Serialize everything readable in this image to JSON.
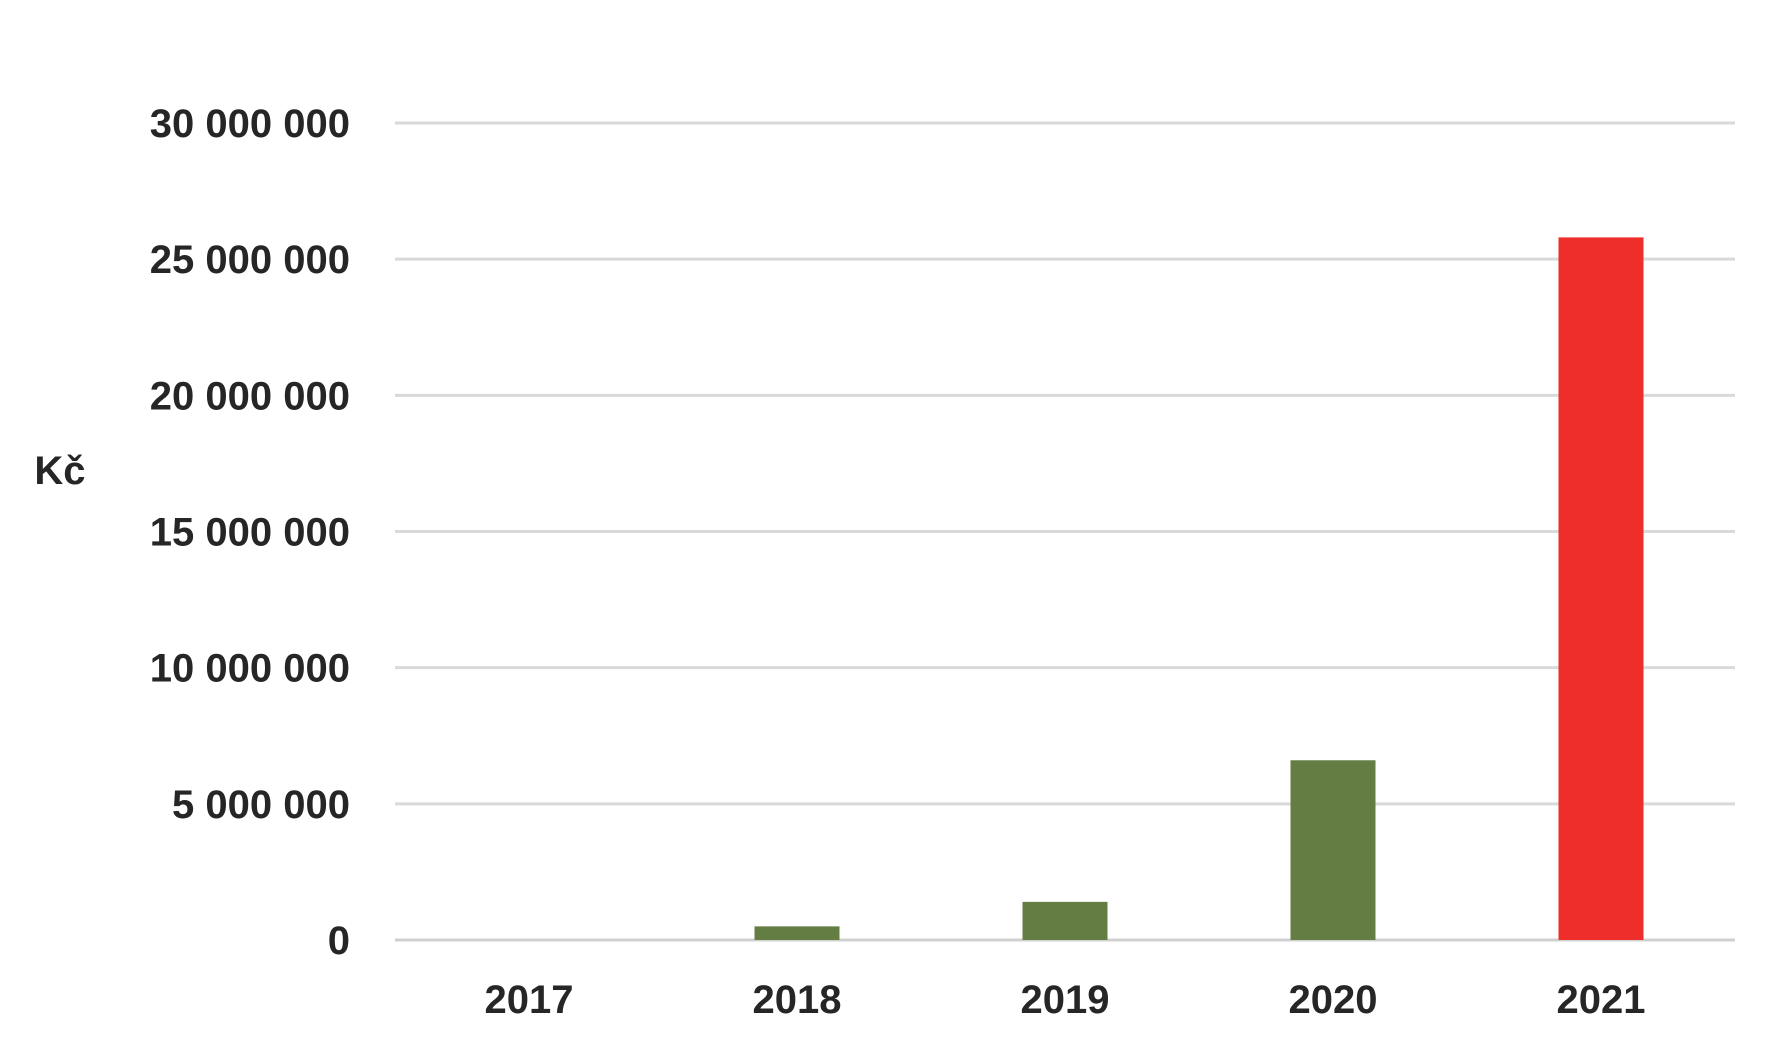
{
  "chart_data": {
    "type": "bar",
    "title": "",
    "xlabel": "",
    "ylabel": "Kč",
    "categories": [
      "2017",
      "2018",
      "2019",
      "2020",
      "2021"
    ],
    "values": [
      0,
      500000,
      1400000,
      6600000,
      25800000
    ],
    "bar_colors": [
      "#647d43",
      "#647d43",
      "#647d43",
      "#647d43",
      "#ee2e2a"
    ],
    "ylim": [
      0,
      30000000
    ],
    "y_ticks": [
      0,
      5000000,
      10000000,
      15000000,
      20000000,
      25000000,
      30000000
    ],
    "y_tick_labels": [
      "0",
      "5 000 000",
      "10 000 000",
      "15 000 000",
      "20 000 000",
      "25 000 000",
      "30 000 000"
    ],
    "grid": true,
    "legend": "none"
  }
}
